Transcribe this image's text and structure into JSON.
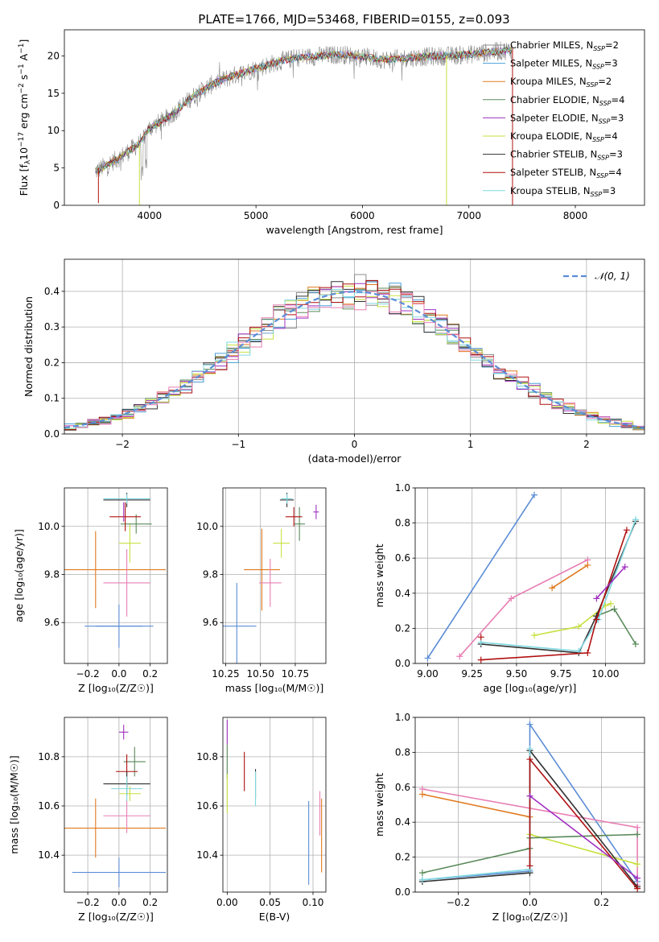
{
  "figure": {
    "title": "PLATE=1766, MJD=53468, FIBERID=0155, z=0.093"
  },
  "chart_data": [
    {
      "id": "spectrum",
      "type": "line",
      "title": "PLATE=1766, MJD=53468, FIBERID=0155, z=0.093",
      "xlabel": "wavelength [Angstrom, rest frame]",
      "ylabel": "Flux [fλ10⁻¹⁷ erg cm⁻² s⁻¹ A⁻¹]",
      "xlim": [
        3200,
        8650
      ],
      "ylim": [
        0,
        23.5
      ],
      "xticks": [
        4000,
        5000,
        6000,
        7000,
        8000
      ],
      "yticks": [
        0,
        5,
        10,
        15,
        20
      ],
      "grid": false,
      "legend_position": "top-right",
      "continuum_x": [
        3500,
        3700,
        3900,
        4000,
        4200,
        4400,
        4600,
        4800,
        5000,
        5200,
        5400,
        5600,
        5800,
        6000,
        6200,
        6400,
        6600,
        6800,
        7000,
        7200,
        7400
      ],
      "continuum_y": [
        4.6,
        6.2,
        8.2,
        10.3,
        12.0,
        14.5,
        16.3,
        17.4,
        18.3,
        19.2,
        19.8,
        20.0,
        20.2,
        19.9,
        19.5,
        19.7,
        19.9,
        20.0,
        20.2,
        20.5,
        20.8
      ],
      "series": [
        {
          "name": "Chabrier MILES, N_SSP=2",
          "color": "#8c8c8c"
        },
        {
          "name": "Salpeter MILES, N_SSP=3",
          "color": "#4a9fd8"
        },
        {
          "name": "Kroupa MILES, N_SSP=2",
          "color": "#e07a1f"
        },
        {
          "name": "Chabrier ELODIE, N_SSP=4",
          "color": "#5a8a5a"
        },
        {
          "name": "Salpeter ELODIE, N_SSP=3",
          "color": "#a030c0"
        },
        {
          "name": "Kroupa ELODIE, N_SSP=4",
          "color": "#c8e040"
        },
        {
          "name": "Chabrier STELIB, N_SSP=3",
          "color": "#303030"
        },
        {
          "name": "Salpeter STELIB, N_SSP=4",
          "color": "#b01010"
        },
        {
          "name": "Kroupa STELIB, N_SSP=3",
          "color": "#80d8e0"
        }
      ],
      "legend": [
        {
          "label": "Chabrier MILES, N",
          "sub": "SSP",
          "tail": "=2",
          "color": "#8c8c8c"
        },
        {
          "label": "Salpeter MILES, N",
          "sub": "SSP",
          "tail": "=3",
          "color": "#4a9fd8"
        },
        {
          "label": "Kroupa MILES, N",
          "sub": "SSP",
          "tail": "=2",
          "color": "#e07a1f"
        },
        {
          "label": "Chabrier ELODIE, N",
          "sub": "SSP",
          "tail": "=4",
          "color": "#5a8a5a"
        },
        {
          "label": "Salpeter ELODIE, N",
          "sub": "SSP",
          "tail": "=3",
          "color": "#a030c0"
        },
        {
          "label": "Kroupa ELODIE, N",
          "sub": "SSP",
          "tail": "=4",
          "color": "#c8e040"
        },
        {
          "label": "Chabrier STELIB, N",
          "sub": "SSP",
          "tail": "=3",
          "color": "#303030"
        },
        {
          "label": "Salpeter STELIB, N",
          "sub": "SSP",
          "tail": "=4",
          "color": "#b01010"
        },
        {
          "label": "Kroupa STELIB, N",
          "sub": "SSP",
          "tail": "=3",
          "color": "#80d8e0"
        }
      ]
    },
    {
      "id": "residuals",
      "type": "area",
      "xlabel": "(data-model)/error",
      "ylabel": "Normed distribution",
      "xlim": [
        -2.5,
        2.5
      ],
      "ylim": [
        0,
        0.49
      ],
      "xticks": [
        -2,
        -1,
        0,
        1,
        2
      ],
      "yticks": [
        0.0,
        0.1,
        0.2,
        0.3,
        0.4
      ],
      "grid": true,
      "legend_position": "top-right",
      "legend": [
        {
          "label": "𝒩(0, 1)",
          "color": "#5b8dd6"
        }
      ],
      "reference_curve": {
        "name": "𝒩(0, 1)",
        "mean": 0,
        "sigma": 1
      },
      "bin_width": 0.1,
      "series_colors": [
        "#8c8c8c",
        "#4a9fd8",
        "#e07a1f",
        "#5a8a5a",
        "#a030c0",
        "#c8e040",
        "#303030",
        "#b01010",
        "#80d8e0",
        "#e87fb4"
      ]
    },
    {
      "id": "age_vs_Z",
      "type": "scatter",
      "xlabel": "Z [log₁₀(Z/Z☉)]",
      "ylabel": "age  [log₁₀(age/yr)]",
      "xlim": [
        -0.35,
        0.31
      ],
      "ylim": [
        9.43,
        10.16
      ],
      "xticks": [
        -0.2,
        0.0,
        0.2
      ],
      "xticklabels": [
        "−0.2",
        "0.0",
        "0.2"
      ],
      "yticks": [
        9.6,
        9.8,
        10.0
      ],
      "grid": true,
      "points": [
        {
          "x": 0.0,
          "y": 9.585,
          "xerr": 0.15,
          "yerr": 0.09,
          "color": "#5b8dd6"
        },
        {
          "x": 0.0,
          "y": 9.585,
          "xerr": 0.22,
          "yerr": 0.0,
          "color": "#5b8dd6"
        },
        {
          "x": -0.15,
          "y": 9.82,
          "xerr": 0.45,
          "yerr": 0.16,
          "color": "#e07a1f"
        },
        {
          "x": 0.05,
          "y": 9.765,
          "xerr": 0.15,
          "yerr": 0.14,
          "color": "#e87fb4"
        },
        {
          "x": 0.07,
          "y": 9.93,
          "xerr": 0.07,
          "yerr": 0.08,
          "color": "#c8e040"
        },
        {
          "x": 0.11,
          "y": 10.01,
          "xerr": 0.1,
          "yerr": 0.04,
          "color": "#5a8a5a"
        },
        {
          "x": 0.04,
          "y": 10.04,
          "xerr": 0.1,
          "yerr": 0.06,
          "color": "#b01010"
        },
        {
          "x": 0.05,
          "y": 10.11,
          "xerr": 0.15,
          "yerr": 0.03,
          "color": "#303030"
        },
        {
          "x": 0.05,
          "y": 10.115,
          "xerr": 0.15,
          "yerr": 0.02,
          "color": "#80d8e0"
        },
        {
          "x": 0.03,
          "y": 10.06,
          "xerr": 0.0,
          "yerr": 0.04,
          "color": "#a030c0"
        }
      ]
    },
    {
      "id": "age_vs_mass",
      "type": "scatter",
      "xlabel": "mass [log₁₀(M/M☉)]",
      "xlim": [
        10.23,
        10.97
      ],
      "ylim": [
        9.43,
        10.16
      ],
      "xticks": [
        10.25,
        10.5,
        10.75
      ],
      "xticklabels": [
        "10.25",
        "10.50",
        "10.75"
      ],
      "yticks": [
        9.6,
        9.8,
        10.0
      ],
      "grid": true,
      "points": [
        {
          "x": 10.33,
          "y": 9.585,
          "xerr": 0.14,
          "yerr": 0.18,
          "color": "#5b8dd6"
        },
        {
          "x": 10.51,
          "y": 9.82,
          "xerr": 0.13,
          "yerr": 0.17,
          "color": "#e07a1f"
        },
        {
          "x": 10.57,
          "y": 9.765,
          "xerr": 0.08,
          "yerr": 0.1,
          "color": "#e87fb4"
        },
        {
          "x": 10.65,
          "y": 9.93,
          "xerr": 0.06,
          "yerr": 0.06,
          "color": "#c8e040"
        },
        {
          "x": 10.78,
          "y": 10.01,
          "xerr": 0.04,
          "yerr": 0.07,
          "color": "#5a8a5a"
        },
        {
          "x": 10.74,
          "y": 10.04,
          "xerr": 0.06,
          "yerr": 0.04,
          "color": "#b01010"
        },
        {
          "x": 10.69,
          "y": 10.11,
          "xerr": 0.05,
          "yerr": 0.03,
          "color": "#303030"
        },
        {
          "x": 10.69,
          "y": 10.115,
          "xerr": 0.04,
          "yerr": 0.02,
          "color": "#80d8e0"
        },
        {
          "x": 10.9,
          "y": 10.06,
          "xerr": 0.02,
          "yerr": 0.03,
          "color": "#a030c0"
        }
      ]
    },
    {
      "id": "weight_vs_age",
      "type": "line",
      "xlabel": "age  [log₁₀(age/yr)]",
      "ylabel": "mass weight",
      "xlim": [
        8.93,
        10.22
      ],
      "ylim": [
        0,
        1.0
      ],
      "xticks": [
        9.0,
        9.25,
        9.5,
        9.75,
        10.0
      ],
      "xticklabels": [
        "9.00",
        "9.25",
        "9.50",
        "9.75",
        "10.00"
      ],
      "yticks": [
        0.0,
        0.2,
        0.4,
        0.6,
        0.8,
        1.0
      ],
      "grid": true,
      "series": [
        {
          "color": "#5b8dd6",
          "x": [
            9.0,
            9.6
          ],
          "y": [
            0.03,
            0.96
          ]
        },
        {
          "color": "#e87fb4",
          "x": [
            9.18,
            9.47,
            9.9
          ],
          "y": [
            0.04,
            0.37,
            0.59
          ]
        },
        {
          "color": "#e07a1f",
          "x": [
            9.7,
            9.9
          ],
          "y": [
            0.43,
            0.56
          ]
        },
        {
          "color": "#c8e040",
          "x": [
            9.6,
            9.85,
            10.0,
            10.03
          ],
          "y": [
            0.16,
            0.21,
            0.33,
            0.34
          ]
        },
        {
          "color": "#5a8a5a",
          "x": [
            9.95,
            10.05,
            10.17
          ],
          "y": [
            0.27,
            0.31,
            0.11
          ]
        },
        {
          "color": "#303030",
          "x": [
            9.3,
            9.85,
            9.95,
            10.17
          ],
          "y": [
            0.11,
            0.06,
            0.27,
            0.81
          ]
        },
        {
          "color": "#80d8e0",
          "x": [
            9.3,
            9.85,
            9.96,
            10.17
          ],
          "y": [
            0.12,
            0.07,
            0.25,
            0.82
          ]
        },
        {
          "color": "#b01010",
          "x": [
            9.3,
            9.9,
            9.95,
            10.12
          ],
          "y": [
            0.02,
            0.06,
            0.25,
            0.76
          ]
        },
        {
          "color": "#a030c0",
          "x": [
            9.95,
            10.11
          ],
          "y": [
            0.37,
            0.55
          ]
        }
      ],
      "extra_markers": [
        {
          "x": 9.3,
          "y": 0.15,
          "color": "#b01010"
        }
      ]
    },
    {
      "id": "mass_vs_Z",
      "type": "scatter",
      "xlabel": "Z [log₁₀(Z/Z☉)]",
      "ylabel": "mass [log₁₀(M/M☉)]",
      "xlim": [
        -0.35,
        0.31
      ],
      "ylim": [
        10.25,
        10.96
      ],
      "xticks": [
        -0.2,
        0.0,
        0.2
      ],
      "xticklabels": [
        "−0.2",
        "0.0",
        "0.2"
      ],
      "yticks": [
        10.4,
        10.6,
        10.8
      ],
      "grid": true,
      "points": [
        {
          "x": 0.0,
          "y": 10.33,
          "xerr": 0.3,
          "yerr": 0.06,
          "color": "#5b8dd6"
        },
        {
          "x": -0.15,
          "y": 10.51,
          "xerr": 0.45,
          "yerr": 0.12,
          "color": "#e07a1f"
        },
        {
          "x": 0.05,
          "y": 10.56,
          "xerr": 0.15,
          "yerr": 0.07,
          "color": "#e87fb4"
        },
        {
          "x": 0.07,
          "y": 10.65,
          "xerr": 0.07,
          "yerr": 0.03,
          "color": "#c8e040"
        },
        {
          "x": 0.1,
          "y": 10.78,
          "xerr": 0.07,
          "yerr": 0.06,
          "color": "#5a8a5a"
        },
        {
          "x": 0.05,
          "y": 10.74,
          "xerr": 0.07,
          "yerr": 0.07,
          "color": "#b01010"
        },
        {
          "x": 0.05,
          "y": 10.69,
          "xerr": 0.15,
          "yerr": 0.05,
          "color": "#303030"
        },
        {
          "x": 0.05,
          "y": 10.67,
          "xerr": 0.1,
          "yerr": 0.05,
          "color": "#80d8e0"
        },
        {
          "x": 0.03,
          "y": 10.9,
          "xerr": 0.03,
          "yerr": 0.03,
          "color": "#a030c0"
        }
      ]
    },
    {
      "id": "mass_vs_EBV",
      "type": "scatter",
      "xlabel": "E(B-V)",
      "xlim": [
        -0.005,
        0.115
      ],
      "ylim": [
        10.25,
        10.96
      ],
      "xticks": [
        0.0,
        0.05,
        0.1
      ],
      "xticklabels": [
        "0.00",
        "0.05",
        "0.10"
      ],
      "yticks": [
        10.4,
        10.6,
        10.8
      ],
      "grid": true,
      "points": [
        {
          "x": 0.0,
          "y": 10.9,
          "yerr": 0.05,
          "color": "#a030c0"
        },
        {
          "x": 0.0,
          "y": 10.78,
          "yerr": 0.07,
          "color": "#5a8a5a"
        },
        {
          "x": 0.0,
          "y": 10.65,
          "yerr": 0.08,
          "color": "#c8e040"
        },
        {
          "x": 0.02,
          "y": 10.74,
          "yerr": 0.08,
          "color": "#b01010"
        },
        {
          "x": 0.033,
          "y": 10.69,
          "yerr": 0.06,
          "color": "#303030"
        },
        {
          "x": 0.033,
          "y": 10.67,
          "yerr": 0.07,
          "color": "#80d8e0"
        },
        {
          "x": 0.095,
          "y": 10.45,
          "yerr": 0.17,
          "color": "#5b8dd6"
        },
        {
          "x": 0.108,
          "y": 10.57,
          "yerr": 0.09,
          "color": "#e87fb4"
        },
        {
          "x": 0.11,
          "y": 10.48,
          "yerr": 0.15,
          "color": "#e07a1f"
        }
      ]
    },
    {
      "id": "weight_vs_Z",
      "type": "line",
      "xlabel": "Z [log₁₀(Z/Z☉)]",
      "ylabel": "mass weight",
      "xlim": [
        -0.32,
        0.32
      ],
      "ylim": [
        0,
        1.0
      ],
      "xticks": [
        -0.2,
        0.0,
        0.2
      ],
      "xticklabels": [
        "−0.2",
        "0.0",
        "0.2"
      ],
      "yticks": [
        0.0,
        0.2,
        0.4,
        0.6,
        0.8,
        1.0
      ],
      "grid": true,
      "series": [
        {
          "color": "#5b8dd6",
          "x": [
            -0.3,
            0.0,
            0.0,
            0.3
          ],
          "y": [
            0.07,
            0.12,
            0.96,
            0.06
          ]
        },
        {
          "color": "#e87fb4",
          "x": [
            -0.3,
            0.3,
            0.3
          ],
          "y": [
            0.59,
            0.37,
            0.04
          ]
        },
        {
          "color": "#e07a1f",
          "x": [
            -0.3,
            0.0
          ],
          "y": [
            0.56,
            0.43
          ]
        },
        {
          "color": "#c8e040",
          "x": [
            0.0,
            0.3
          ],
          "y": [
            0.33,
            0.16
          ]
        },
        {
          "color": "#5a8a5a",
          "x": [
            -0.3,
            0.0,
            0.0,
            0.3
          ],
          "y": [
            0.11,
            0.25,
            0.31,
            0.33
          ]
        },
        {
          "color": "#303030",
          "x": [
            -0.3,
            0.0,
            0.0,
            0.3
          ],
          "y": [
            0.06,
            0.11,
            0.81,
            0.03
          ]
        },
        {
          "color": "#80d8e0",
          "x": [
            -0.3,
            0.0,
            0.0
          ],
          "y": [
            0.07,
            0.13,
            0.82
          ]
        },
        {
          "color": "#b01010",
          "x": [
            0.0,
            0.0,
            0.3
          ],
          "y": [
            0.15,
            0.76,
            0.02
          ]
        },
        {
          "color": "#a030c0",
          "x": [
            0.0,
            0.3
          ],
          "y": [
            0.55,
            0.08
          ]
        }
      ]
    }
  ]
}
